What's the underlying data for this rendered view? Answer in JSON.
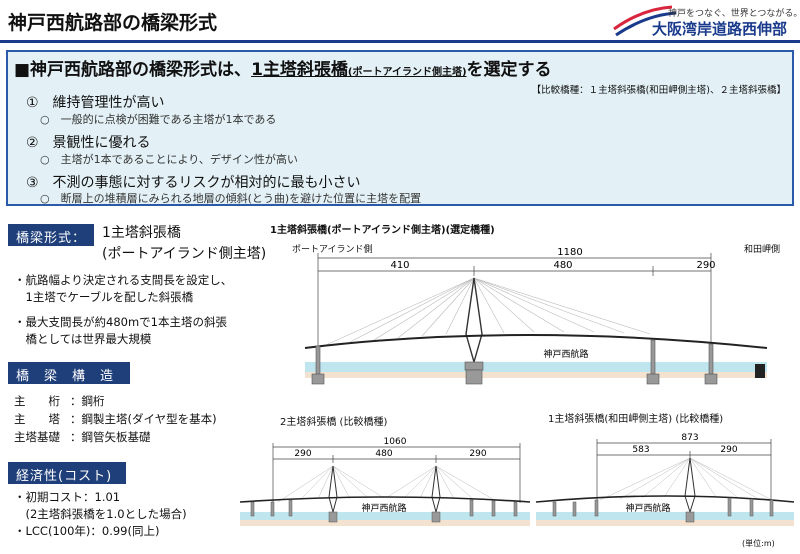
{
  "title": "神戸西航路部の橋梁形式",
  "logo": {
    "tagline": "神戸をつなぐ、世界とつながる。",
    "name": "大阪湾岸道路西伸部"
  },
  "decision": {
    "prefix": "■神戸西航路部の橋梁形式は、",
    "choice": "1主塔斜張橋",
    "choice_note": "(ポートアイランド側主塔)",
    "suffix": "を選定する"
  },
  "comparison": "【比較橋種：１主塔斜張橋(和田岬側主塔)、２主塔斜張橋】",
  "reasons": [
    {
      "title": "①　維持管理性が高い",
      "detail": "○　一般的に点検が困難である主塔が1本である"
    },
    {
      "title": "②　景観性に優れる",
      "detail": "○　主塔が1本であることにより、デザイン性が高い"
    },
    {
      "title": "③　不測の事態に対するリスクが相対的に最も小さい",
      "detail": "○　断層上の堆積層にみられる地層の傾斜(とう曲)を避けた位置に主塔を配置"
    }
  ],
  "bridge_type": {
    "label": "橋梁形式：",
    "line1": "1主塔斜張橋",
    "line2": "(ポートアイランド側主塔)",
    "bullets": [
      "・航路幅より決定される支間長を設定し、",
      "　1主塔でケーブルを配した斜張橋",
      "・最大支間長が約480mで1本主塔の斜張",
      "　橋としては世界最大規模"
    ]
  },
  "structure": {
    "label": "橋　梁　構　造",
    "items": [
      {
        "key": "主　　桁",
        "value": "：鋼桁"
      },
      {
        "key": "主　　塔",
        "value": "：鋼製主塔(ダイヤ型を基本)"
      },
      {
        "key": "主塔基礎",
        "value": "：鋼管矢板基礎"
      }
    ]
  },
  "economy": {
    "label": "経済性(コスト)",
    "lines": [
      "・初期コスト：1.01",
      "　(2主塔斜張橋を1.0とした場合)",
      "・LCC(100年)：0.99(同上)"
    ]
  },
  "diagram_main": {
    "title": "1主塔斜張橋(ポートアイランド側主塔)(選定橋種)",
    "left_side": "ポートアイランド側",
    "right_side": "和田岬側",
    "total": "1180",
    "spans": [
      "410",
      "480",
      "290"
    ],
    "channel": "神戸西航路"
  },
  "diagram_2": {
    "title": "2主塔斜張橋 (比較橋種)",
    "total": "1060",
    "spans": [
      "290",
      "480",
      "290"
    ],
    "channel": "神戸西航路"
  },
  "diagram_3": {
    "title": "1主塔斜張橋(和田岬側主塔) (比較橋種)",
    "total": "873",
    "spans": [
      "583",
      "290"
    ],
    "channel": "神戸西航路"
  },
  "unit": "(単位:m)",
  "colors": {
    "accent": "#1a3b8c",
    "box_bg": "#e3f1f6",
    "water": "#bfe6ef",
    "seabed": "#f3e2cf",
    "label_bg": "#1f3f7a"
  }
}
